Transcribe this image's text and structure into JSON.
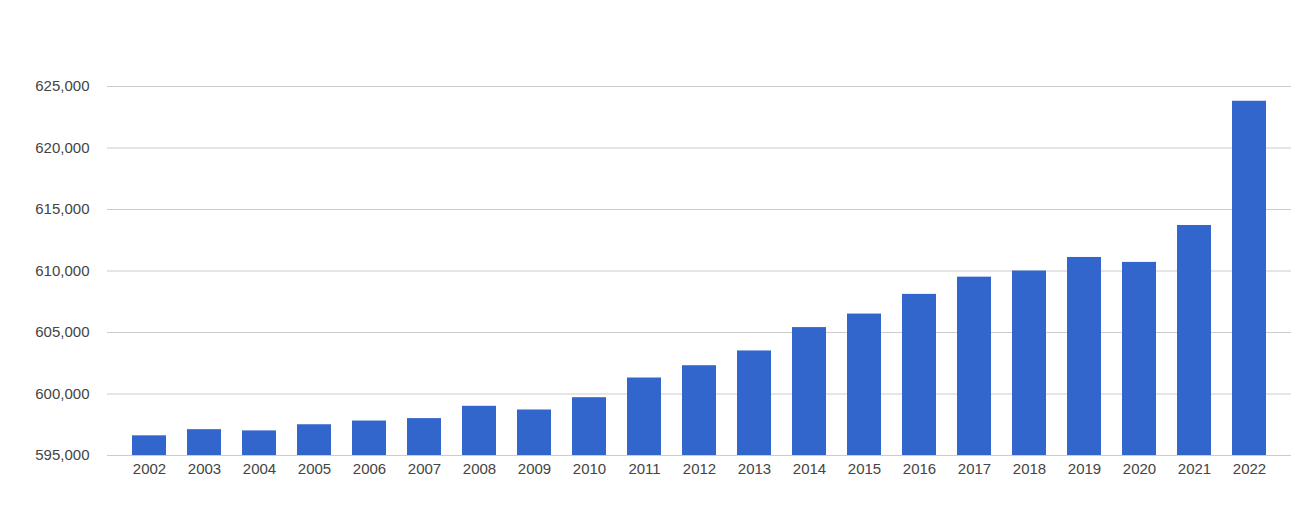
{
  "chart_data": {
    "type": "bar",
    "categories": [
      "2002",
      "2003",
      "2004",
      "2005",
      "2006",
      "2007",
      "2008",
      "2009",
      "2010",
      "2011",
      "2012",
      "2013",
      "2014",
      "2015",
      "2016",
      "2017",
      "2018",
      "2019",
      "2020",
      "2021",
      "2022"
    ],
    "values": [
      596600,
      597100,
      597000,
      597500,
      597800,
      598000,
      599000,
      598700,
      599700,
      601300,
      602300,
      603500,
      605400,
      606500,
      608100,
      609500,
      610000,
      611100,
      610700,
      613700,
      623800
    ],
    "color": "#3366cc",
    "ylim": [
      595000,
      625000
    ],
    "yticks": [
      {
        "value": 595000,
        "label": "595,000"
      },
      {
        "value": 600000,
        "label": "600,000"
      },
      {
        "value": 605000,
        "label": "605,000"
      },
      {
        "value": 610000,
        "label": "610,000"
      },
      {
        "value": 615000,
        "label": "615,000"
      },
      {
        "value": 620000,
        "label": "620,000"
      },
      {
        "value": 625000,
        "label": "625,000"
      }
    ],
    "grid": true
  }
}
